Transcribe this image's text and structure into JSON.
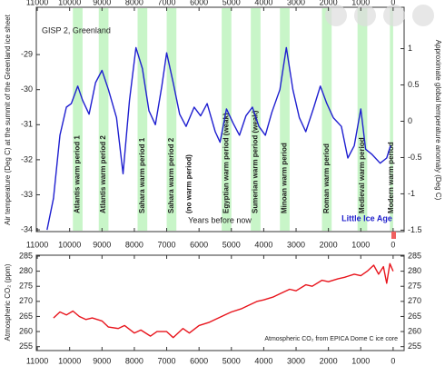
{
  "chart_data": [
    {
      "type": "line",
      "title": "GISP 2, Greenland",
      "ylabel": "Air temperature (Deg C) at the summit of the Greenland ice sheet",
      "y2label": "Approximate global temperature anomaly (Deg C)",
      "xlabel": "Years before now",
      "annotation": "Little Ice Age",
      "xlim": [
        11030,
        -340
      ],
      "xticks": [
        11000,
        10000,
        9000,
        8000,
        7000,
        6000,
        5000,
        4000,
        3000,
        2000,
        1000,
        0
      ],
      "ylim": [
        -34.05,
        -27.65
      ],
      "yticks": [
        -34,
        -33,
        -32,
        -31,
        -30,
        -29
      ],
      "y2lim": [
        -1.52,
        1.57
      ],
      "y2ticks": [
        -1.5,
        -1,
        -0.5,
        0,
        0.5,
        1
      ],
      "band_color": "#c8f5c8",
      "periods": [
        {
          "label": "Atlantis warm period 1",
          "start": 9900,
          "end": 9600
        },
        {
          "label": "Atlantis warm period 2",
          "start": 9100,
          "end": 8800
        },
        {
          "label": "Sahara warm period 1",
          "start": 7900,
          "end": 7600
        },
        {
          "label": "Sahara warm period 2",
          "start": 7000,
          "end": 6700
        },
        {
          "label": "(no warm period)",
          "start": null,
          "end": null
        },
        {
          "label": "Egyptian warm period (weak)",
          "start": 5300,
          "end": 5000
        },
        {
          "label": "Sumerian warm period (weak)",
          "start": 4400,
          "end": 4100
        },
        {
          "label": "Minoan warm period",
          "start": 3500,
          "end": 3200
        },
        {
          "label": "Roman warm period",
          "start": 2200,
          "end": 1900
        },
        {
          "label": "Medieval warm period",
          "start": 1100,
          "end": 800
        },
        {
          "label": "Modern warm period",
          "start": 100,
          "end": 0
        }
      ],
      "series": [
        {
          "name": "GISP 2",
          "color": "#1f1fd0",
          "x": [
            10700,
            10500,
            10300,
            10100,
            9950,
            9750,
            9600,
            9400,
            9200,
            9000,
            8800,
            8550,
            8350,
            8150,
            7950,
            7750,
            7550,
            7350,
            7150,
            7000,
            6800,
            6600,
            6400,
            6150,
            5950,
            5750,
            5500,
            5350,
            5150,
            4950,
            4750,
            4550,
            4350,
            4150,
            3950,
            3750,
            3500,
            3300,
            3100,
            2900,
            2700,
            2450,
            2250,
            2050,
            1850,
            1600,
            1400,
            1200,
            1000,
            850,
            650,
            400,
            200,
            80
          ],
          "values": [
            -34,
            -33.1,
            -31.3,
            -30.5,
            -30.4,
            -29.9,
            -30.3,
            -30.7,
            -29.8,
            -29.45,
            -30,
            -30.8,
            -32.4,
            -30.3,
            -28.8,
            -29.4,
            -30.6,
            -31,
            -29.9,
            -28.95,
            -29.8,
            -30.7,
            -31.05,
            -30.5,
            -30.75,
            -30.4,
            -31.2,
            -31.5,
            -30.55,
            -30.95,
            -31.3,
            -30.75,
            -30.5,
            -31.05,
            -31.3,
            -30.65,
            -30,
            -28.8,
            -30,
            -30.8,
            -31.2,
            -30.5,
            -29.9,
            -30.4,
            -30.8,
            -31.05,
            -31.95,
            -31.6,
            -30.55,
            -31.7,
            -31.85,
            -32.1,
            -31.95,
            -31.6
          ]
        }
      ]
    },
    {
      "type": "line",
      "ylabel": "Atmospheric CO₂ (ppm)",
      "annotation": "Atmospheric CO₂ from EPICA Dome C ice core",
      "xlim": [
        11030,
        -340
      ],
      "xticks": [
        11000,
        10000,
        9000,
        8000,
        7000,
        6000,
        5000,
        4000,
        3000,
        2000,
        1000,
        0
      ],
      "ylim": [
        253.7,
        285.3
      ],
      "yticks": [
        255,
        260,
        265,
        270,
        275,
        280,
        285
      ],
      "series": [
        {
          "name": "EPICA Dome C",
          "color": "#e8141c",
          "x": [
            10500,
            10300,
            10100,
            9900,
            9700,
            9500,
            9300,
            9000,
            8800,
            8500,
            8300,
            8000,
            7800,
            7500,
            7300,
            7000,
            6800,
            6500,
            6300,
            6000,
            5700,
            5500,
            5200,
            5000,
            4700,
            4500,
            4200,
            4000,
            3700,
            3500,
            3200,
            3000,
            2700,
            2500,
            2200,
            2000,
            1700,
            1500,
            1200,
            1000,
            800,
            600,
            450,
            300,
            200,
            100,
            0
          ],
          "values": [
            264.5,
            266.5,
            265.5,
            266.8,
            265,
            264,
            264.5,
            263.5,
            261.5,
            261,
            262,
            259.5,
            260.5,
            258.5,
            260,
            260,
            258,
            261,
            259.5,
            262,
            263,
            264,
            265.5,
            266.5,
            267.5,
            268.5,
            270,
            270.5,
            271.5,
            272.5,
            274,
            273.5,
            275.5,
            275,
            277,
            276.5,
            277.5,
            278,
            279,
            278.5,
            280,
            282,
            279,
            281.5,
            276,
            282.5,
            280
          ]
        }
      ]
    }
  ]
}
